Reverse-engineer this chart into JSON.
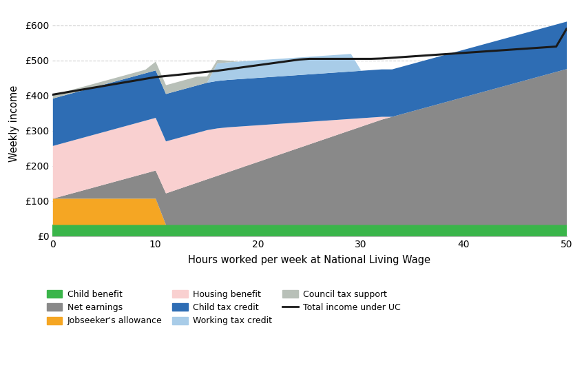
{
  "xlabel": "Hours worked per week at National Living Wage",
  "ylabel": "Weekly income",
  "ytick_labels": [
    "£0",
    "£100",
    "£200",
    "£300",
    "£400",
    "£500",
    "£600"
  ],
  "ytick_values": [
    0,
    100,
    200,
    300,
    400,
    500,
    600
  ],
  "xtick_values": [
    0,
    10,
    20,
    30,
    40,
    50
  ],
  "xlim": [
    0,
    50
  ],
  "ylim": [
    0,
    640
  ],
  "colors": {
    "child_benefit": "#3ab54a",
    "jobseekers_allowance": "#f5a623",
    "net_earnings": "#898989",
    "housing_benefit": "#f9d0d0",
    "child_tax_credit": "#2e6db4",
    "working_tax_credit": "#a8cce8",
    "council_tax_support": "#b8c0b8",
    "total_income_uc": "#1a1a1a"
  },
  "hours": [
    0,
    1,
    2,
    3,
    4,
    5,
    6,
    7,
    8,
    9,
    10,
    11,
    12,
    13,
    14,
    15,
    16,
    17,
    18,
    19,
    20,
    21,
    22,
    23,
    24,
    25,
    26,
    27,
    28,
    29,
    30,
    31,
    32,
    33,
    34,
    35,
    36,
    37,
    38,
    39,
    40,
    41,
    42,
    43,
    44,
    45,
    46,
    47,
    48,
    49,
    50
  ],
  "child_benefit": [
    33,
    33,
    33,
    33,
    33,
    33,
    33,
    33,
    33,
    33,
    33,
    33,
    33,
    33,
    33,
    33,
    33,
    33,
    33,
    33,
    33,
    33,
    33,
    33,
    33,
    33,
    33,
    33,
    33,
    33,
    33,
    33,
    33,
    33,
    33,
    33,
    33,
    33,
    33,
    33,
    33,
    33,
    33,
    33,
    33,
    33,
    33,
    33,
    33,
    33,
    33
  ],
  "jobseekers_allowance": [
    75,
    75,
    75,
    75,
    75,
    75,
    75,
    75,
    75,
    75,
    75,
    0,
    0,
    0,
    0,
    0,
    0,
    0,
    0,
    0,
    0,
    0,
    0,
    0,
    0,
    0,
    0,
    0,
    0,
    0,
    0,
    0,
    0,
    0,
    0,
    0,
    0,
    0,
    0,
    0,
    0,
    0,
    0,
    0,
    0,
    0,
    0,
    0,
    0,
    0,
    0
  ],
  "net_earnings": [
    0,
    8,
    16,
    24,
    32,
    40,
    48,
    56,
    64,
    72,
    80,
    90,
    100,
    110,
    120,
    130,
    140,
    150,
    160,
    170,
    180,
    190,
    200,
    210,
    220,
    230,
    240,
    250,
    260,
    270,
    280,
    290,
    300,
    308,
    316,
    324,
    332,
    340,
    348,
    356,
    364,
    372,
    380,
    388,
    396,
    404,
    412,
    420,
    428,
    436,
    444
  ],
  "housing_benefit": [
    150,
    150,
    150,
    150,
    150,
    150,
    150,
    150,
    150,
    150,
    150,
    148,
    146,
    144,
    142,
    140,
    135,
    128,
    120,
    112,
    104,
    96,
    88,
    80,
    72,
    64,
    56,
    48,
    40,
    32,
    24,
    16,
    8,
    0,
    0,
    0,
    0,
    0,
    0,
    0,
    0,
    0,
    0,
    0,
    0,
    0,
    0,
    0,
    0,
    0,
    0
  ],
  "child_tax_credit": [
    135,
    135,
    135,
    135,
    135,
    135,
    135,
    135,
    135,
    135,
    135,
    135,
    135,
    135,
    135,
    135,
    135,
    135,
    135,
    135,
    135,
    135,
    135,
    135,
    135,
    135,
    135,
    135,
    135,
    135,
    135,
    135,
    135,
    135,
    135,
    135,
    135,
    135,
    135,
    135,
    135,
    135,
    135,
    135,
    135,
    135,
    135,
    135,
    135,
    135,
    135
  ],
  "working_tax_credit": [
    0,
    0,
    0,
    0,
    0,
    0,
    0,
    0,
    0,
    0,
    0,
    0,
    0,
    0,
    0,
    0,
    50,
    50,
    50,
    50,
    50,
    50,
    50,
    50,
    50,
    50,
    50,
    50,
    50,
    50,
    0,
    0,
    0,
    0,
    0,
    0,
    0,
    0,
    0,
    0,
    0,
    0,
    0,
    0,
    0,
    0,
    0,
    0,
    0,
    0,
    0
  ],
  "council_tax_support": [
    10,
    10,
    10,
    10,
    10,
    10,
    10,
    10,
    10,
    10,
    25,
    25,
    25,
    25,
    25,
    18,
    10,
    5,
    0,
    0,
    0,
    0,
    0,
    0,
    0,
    0,
    0,
    0,
    0,
    0,
    0,
    0,
    0,
    0,
    0,
    0,
    0,
    0,
    0,
    0,
    0,
    0,
    0,
    0,
    0,
    0,
    0,
    0,
    0,
    0,
    0
  ],
  "total_income_uc": [
    403,
    408,
    413,
    418,
    423,
    428,
    433,
    438,
    443,
    448,
    453,
    456,
    459,
    462,
    465,
    468,
    471,
    475,
    479,
    483,
    487,
    491,
    495,
    499,
    503,
    505,
    505,
    505,
    505,
    505,
    505,
    505,
    506,
    508,
    510,
    512,
    514,
    516,
    518,
    520,
    522,
    524,
    526,
    528,
    530,
    532,
    534,
    536,
    538,
    540,
    590
  ]
}
